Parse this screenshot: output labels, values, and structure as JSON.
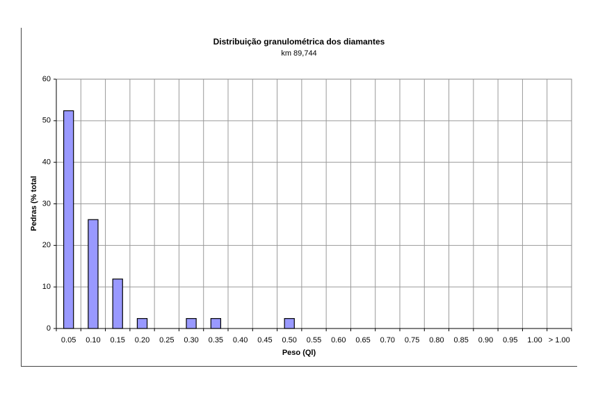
{
  "chart_data": {
    "type": "bar",
    "title": "Distribuição granulométrica dos diamantes",
    "subtitle": "km 89,744",
    "x_label": "Peso (Ql)",
    "y_label": "Pedras (% total",
    "categories": [
      "0.05",
      "0.10",
      "0.15",
      "0.20",
      "0.25",
      "0.30",
      "0.35",
      "0.40",
      "0.45",
      "0.50",
      "0.55",
      "0.60",
      "0.65",
      "0.70",
      "0.75",
      "0.80",
      "0.85",
      "0.90",
      "0.95",
      "1.00",
      "> 1.00"
    ],
    "values": [
      52.4,
      26.2,
      11.9,
      2.4,
      0,
      2.4,
      2.4,
      0,
      0,
      2.4,
      0,
      0,
      0,
      0,
      0,
      0,
      0,
      0,
      0,
      0,
      0
    ],
    "color": "#9999ff",
    "ylim": [
      0,
      60
    ],
    "yticks": [
      0,
      10,
      20,
      30,
      40,
      50,
      60
    ],
    "grid": true
  }
}
